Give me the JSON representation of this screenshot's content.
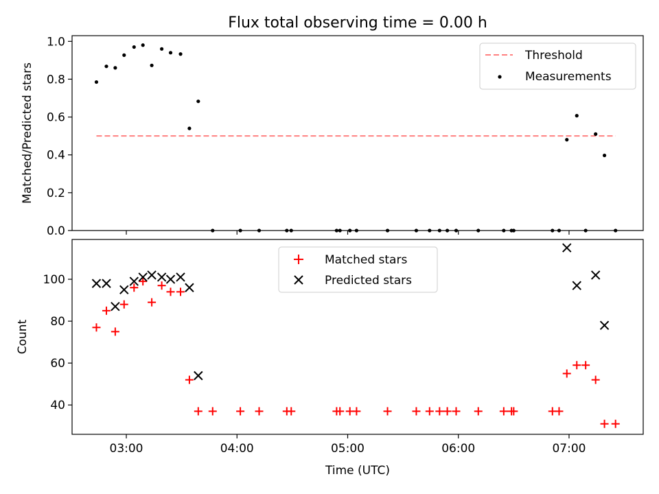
{
  "figure_title": "Flux total observing time = 0.00 h",
  "x_label": "Time (UTC)",
  "x_ticks": [
    "03:00",
    "04:00",
    "05:00",
    "06:00",
    "07:00"
  ],
  "chart_data": [
    {
      "type": "scatter",
      "title": "Flux total observing time = 0.00 h",
      "xlabel": "",
      "ylabel": "Matched/Predicted stars",
      "ylim": [
        0,
        1.03
      ],
      "yticks": [
        0.0,
        0.2,
        0.4,
        0.6,
        0.8,
        1.0
      ],
      "ytick_labels": [
        "0.0",
        "0.2",
        "0.4",
        "0.6",
        "0.8",
        "1.0"
      ],
      "legend_position": "top-right",
      "threshold": {
        "name": "Threshold",
        "y": 0.5,
        "x_range": [
          2.73,
          7.42
        ],
        "color": "#ff7f7f",
        "style": "dashed"
      },
      "series": [
        {
          "name": "Measurements",
          "marker": "dot",
          "color": "#000000",
          "x": [
            2.73,
            2.82,
            2.9,
            2.98,
            3.07,
            3.15,
            3.23,
            3.32,
            3.4,
            3.49,
            3.57,
            3.65,
            3.78,
            4.03,
            4.2,
            4.45,
            4.49,
            4.9,
            4.93,
            5.02,
            5.08,
            5.36,
            5.62,
            5.74,
            5.83,
            5.9,
            5.98,
            6.18,
            6.41,
            6.48,
            6.5,
            6.85,
            6.91,
            6.98,
            7.07,
            7.15,
            7.24,
            7.32,
            7.42
          ],
          "y": [
            0.785,
            0.868,
            0.86,
            0.927,
            0.97,
            0.98,
            0.873,
            0.96,
            0.94,
            0.933,
            0.54,
            0.683,
            0.0,
            0.0,
            0.0,
            0.0,
            0.0,
            0.0,
            0.0,
            0.0,
            0.0,
            0.0,
            0.0,
            0.0,
            0.0,
            0.0,
            0.0,
            0.0,
            0.0,
            0.0,
            0.0,
            0.0,
            0.0,
            0.48,
            0.607,
            0.0,
            0.51,
            0.397,
            0.0
          ]
        }
      ]
    },
    {
      "type": "scatter",
      "title": "",
      "xlabel": "Time (UTC)",
      "ylabel": "Count",
      "ylim": [
        26,
        119
      ],
      "yticks": [
        40,
        60,
        80,
        100
      ],
      "ytick_labels": [
        "40",
        "60",
        "80",
        "100"
      ],
      "legend_position": "top-center",
      "series": [
        {
          "name": "Matched stars",
          "marker": "plus",
          "color": "#ff0000",
          "x": [
            2.73,
            2.82,
            2.9,
            2.98,
            3.07,
            3.15,
            3.23,
            3.32,
            3.4,
            3.49,
            3.57,
            3.65,
            3.78,
            4.03,
            4.2,
            4.45,
            4.49,
            4.9,
            4.93,
            5.02,
            5.08,
            5.36,
            5.62,
            5.74,
            5.83,
            5.9,
            5.98,
            6.18,
            6.41,
            6.48,
            6.5,
            6.85,
            6.91,
            6.98,
            7.07,
            7.15,
            7.24,
            7.32,
            7.42
          ],
          "y": [
            77,
            85,
            75,
            88,
            96,
            99,
            89,
            97,
            94,
            94,
            52,
            37,
            37,
            37,
            37,
            37,
            37,
            37,
            37,
            37,
            37,
            37,
            37,
            37,
            37,
            37,
            37,
            37,
            37,
            37,
            37,
            37,
            37,
            55,
            59,
            59,
            52,
            31,
            31
          ]
        },
        {
          "name": "Predicted stars",
          "marker": "x",
          "color": "#000000",
          "x": [
            2.73,
            2.82,
            2.9,
            2.98,
            3.07,
            3.15,
            3.23,
            3.32,
            3.4,
            3.49,
            3.57,
            3.65,
            6.98,
            7.07,
            7.24,
            7.32
          ],
          "y": [
            98,
            98,
            87,
            95,
            99,
            101,
            102,
            101,
            100,
            101,
            96,
            54,
            115,
            97,
            102,
            78
          ]
        }
      ]
    }
  ]
}
